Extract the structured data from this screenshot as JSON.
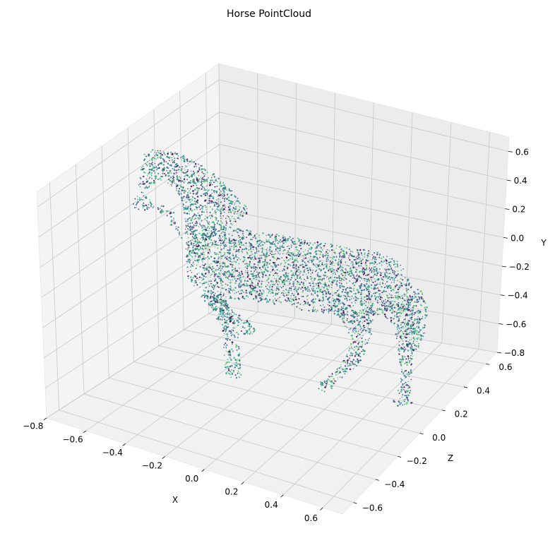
{
  "chart_data": {
    "type": "scatter",
    "projection": "3d",
    "title": "Horse PointCloud",
    "xlabel": "X",
    "ylabel": "Y",
    "zlabel": "Z",
    "xlim": [
      -0.8,
      0.7
    ],
    "ylim": [
      -0.8,
      0.7
    ],
    "zlim": [
      -0.7,
      0.7
    ],
    "x_ticks": [
      "−0.8",
      "−0.6",
      "−0.4",
      "−0.2",
      "0.0",
      "0.2",
      "0.4",
      "0.6"
    ],
    "y_ticks": [
      "−0.8",
      "−0.6",
      "−0.4",
      "−0.2",
      "0.0",
      "0.2",
      "0.4",
      "0.6"
    ],
    "z_ticks": [
      "−0.6",
      "−0.4",
      "−0.2",
      "0.0",
      "0.2",
      "0.4",
      "0.6"
    ],
    "colormap": "viridis",
    "pane_color": "#f2f2f2",
    "grid": true,
    "point_colors": [
      "#3b528b",
      "#2c728e",
      "#21918c",
      "#28ae80",
      "#5ec962",
      "#440154",
      "#31688e"
    ]
  }
}
